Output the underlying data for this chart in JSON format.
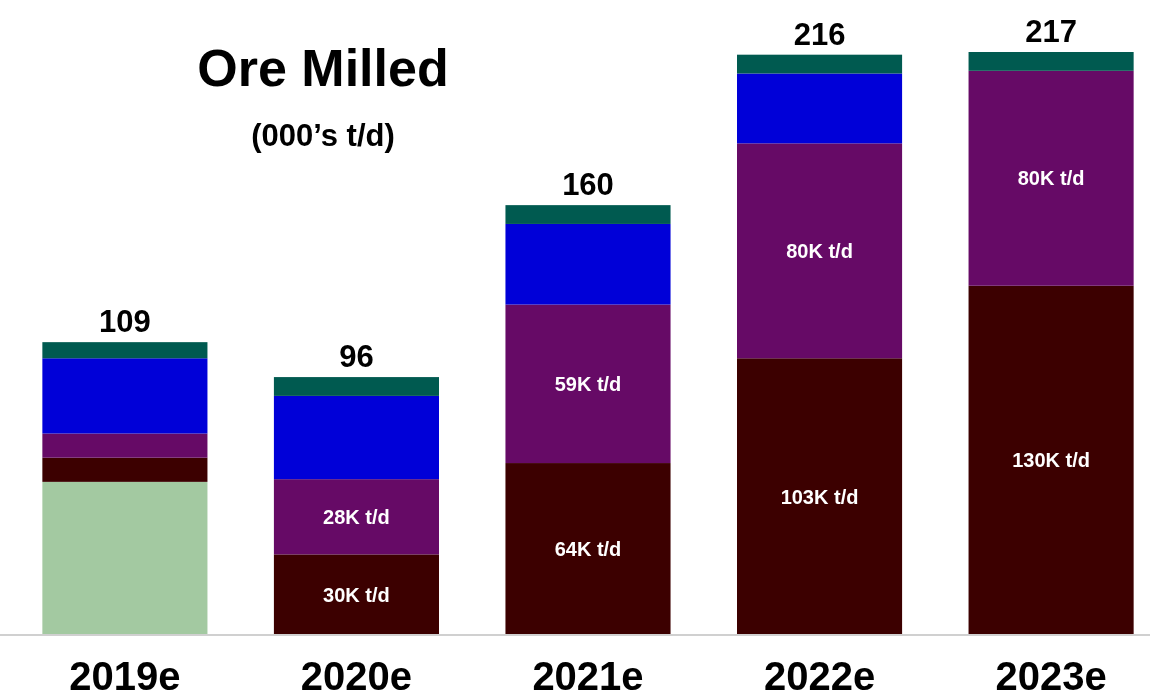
{
  "chart_data": {
    "type": "bar",
    "title": "Ore Milled",
    "subtitle": "(000’s t/d)",
    "stacked": true,
    "categories": [
      "2019e",
      "2020e",
      "2021e",
      "2022e",
      "2023e"
    ],
    "series": [
      {
        "color": "#a3c9a1",
        "values": [
          57,
          null,
          null,
          null,
          null
        ]
      },
      {
        "color": "#3c0000",
        "values": [
          9,
          30,
          64,
          103,
          130
        ],
        "value_labels": [
          null,
          "30K t/d",
          "64K t/d",
          "103K t/d",
          "130K t/d"
        ]
      },
      {
        "color": "#660a66",
        "values": [
          9,
          28,
          59,
          80,
          80
        ],
        "value_labels": [
          null,
          "28K t/d",
          "59K t/d",
          "80K t/d",
          "80K t/d"
        ]
      },
      {
        "color": "#0000d8",
        "values": [
          28,
          31,
          30,
          26,
          null
        ]
      },
      {
        "color": "#005a50",
        "values": [
          6,
          7,
          7,
          7,
          7
        ]
      }
    ],
    "totals": [
      "109",
      "96",
      "160",
      "216",
      "217"
    ],
    "tick_labels": "x"
  }
}
